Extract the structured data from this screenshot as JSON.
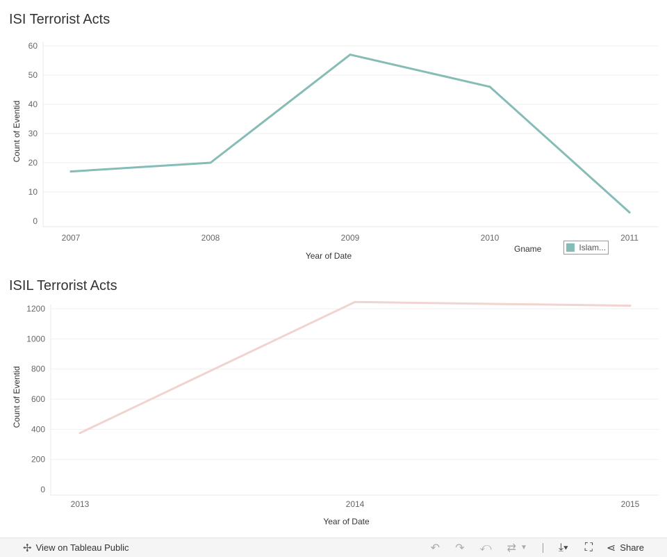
{
  "chart_data": [
    {
      "type": "line",
      "title": "ISI Terrorist Acts",
      "xlabel": "Year of Date",
      "ylabel": "Count of Eventid",
      "categories": [
        "2007",
        "2008",
        "2009",
        "2010",
        "2011"
      ],
      "series": [
        {
          "name": "Islam...",
          "values": [
            17,
            20,
            57,
            46,
            3
          ],
          "color": "#86bcb6"
        }
      ],
      "ylim": [
        0,
        60
      ],
      "yticks": [
        0,
        10,
        20,
        30,
        40,
        50,
        60
      ],
      "grid": true,
      "legend": {
        "title": "Gname",
        "placement": "bottom-right"
      }
    },
    {
      "type": "line",
      "title": "ISIL Terrorist Acts",
      "xlabel": "Year of Date",
      "ylabel": "Count of Eventid",
      "categories": [
        "2013",
        "2014",
        "2015"
      ],
      "series": [
        {
          "values": [
            375,
            1245,
            1220
          ],
          "color": "#f1d3d0"
        }
      ],
      "ylim": [
        0,
        1200
      ],
      "yticks": [
        0,
        200,
        400,
        600,
        800,
        1000,
        1200
      ],
      "grid": true
    }
  ],
  "toolbar": {
    "view_label": "View on Tableau Public",
    "share_label": "Share",
    "icons": {
      "logo": "tableau-logo-icon",
      "undo": "undo-icon",
      "redo": "redo-icon",
      "revert": "revert-icon",
      "refresh": "refresh-icon",
      "pause": "pause-dropdown-icon",
      "download": "download-icon",
      "fullscreen": "fullscreen-icon",
      "share": "share-icon"
    }
  }
}
